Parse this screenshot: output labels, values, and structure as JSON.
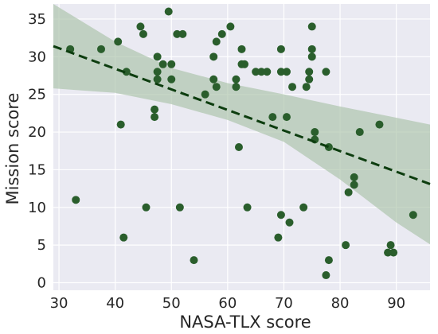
{
  "chart_data": {
    "type": "scatter",
    "xlabel": "NASA-TLX score",
    "ylabel": "Mission score",
    "xlim": [
      29,
      96
    ],
    "ylim": [
      -1,
      37
    ],
    "x_ticks": [
      30,
      40,
      50,
      60,
      70,
      80,
      90
    ],
    "y_ticks": [
      0,
      5,
      10,
      15,
      20,
      25,
      30,
      35
    ],
    "x_tick_labels": [
      "30",
      "40",
      "50",
      "60",
      "70",
      "80",
      "90"
    ],
    "y_tick_labels": [
      "0",
      "5",
      "10",
      "15",
      "20",
      "25",
      "30",
      "35"
    ],
    "grid": true,
    "points": [
      {
        "x": 32,
        "y": 31
      },
      {
        "x": 33,
        "y": 11
      },
      {
        "x": 37.5,
        "y": 31
      },
      {
        "x": 40.5,
        "y": 32
      },
      {
        "x": 41,
        "y": 21
      },
      {
        "x": 41.5,
        "y": 6
      },
      {
        "x": 42,
        "y": 28
      },
      {
        "x": 44.5,
        "y": 34
      },
      {
        "x": 45,
        "y": 33
      },
      {
        "x": 45.5,
        "y": 10
      },
      {
        "x": 47,
        "y": 23
      },
      {
        "x": 47,
        "y": 22
      },
      {
        "x": 47.5,
        "y": 30
      },
      {
        "x": 47.5,
        "y": 28
      },
      {
        "x": 47.5,
        "y": 27
      },
      {
        "x": 48.5,
        "y": 29
      },
      {
        "x": 49.5,
        "y": 36
      },
      {
        "x": 50,
        "y": 29
      },
      {
        "x": 50,
        "y": 27
      },
      {
        "x": 51,
        "y": 33
      },
      {
        "x": 51.5,
        "y": 10
      },
      {
        "x": 52,
        "y": 33
      },
      {
        "x": 54,
        "y": 3
      },
      {
        "x": 56,
        "y": 25
      },
      {
        "x": 57.5,
        "y": 27
      },
      {
        "x": 57.5,
        "y": 30
      },
      {
        "x": 58,
        "y": 26
      },
      {
        "x": 58,
        "y": 32
      },
      {
        "x": 59,
        "y": 33
      },
      {
        "x": 60.5,
        "y": 34
      },
      {
        "x": 61.5,
        "y": 26
      },
      {
        "x": 61.5,
        "y": 27
      },
      {
        "x": 62,
        "y": 18
      },
      {
        "x": 62.5,
        "y": 29
      },
      {
        "x": 62.5,
        "y": 31
      },
      {
        "x": 63,
        "y": 29
      },
      {
        "x": 63.5,
        "y": 10
      },
      {
        "x": 65,
        "y": 28
      },
      {
        "x": 66,
        "y": 28
      },
      {
        "x": 67,
        "y": 28
      },
      {
        "x": 68,
        "y": 22
      },
      {
        "x": 69,
        "y": 6
      },
      {
        "x": 69.5,
        "y": 28
      },
      {
        "x": 69.5,
        "y": 31
      },
      {
        "x": 69.5,
        "y": 9
      },
      {
        "x": 70.5,
        "y": 22
      },
      {
        "x": 70.5,
        "y": 28
      },
      {
        "x": 71,
        "y": 8
      },
      {
        "x": 71.5,
        "y": 26
      },
      {
        "x": 73.5,
        "y": 10
      },
      {
        "x": 74,
        "y": 26
      },
      {
        "x": 74.5,
        "y": 27
      },
      {
        "x": 74.5,
        "y": 28
      },
      {
        "x": 75,
        "y": 34
      },
      {
        "x": 75,
        "y": 31
      },
      {
        "x": 75,
        "y": 30
      },
      {
        "x": 75.5,
        "y": 20
      },
      {
        "x": 75.5,
        "y": 19
      },
      {
        "x": 77.5,
        "y": 1
      },
      {
        "x": 77.5,
        "y": 28
      },
      {
        "x": 78,
        "y": 3
      },
      {
        "x": 78,
        "y": 18
      },
      {
        "x": 81,
        "y": 5
      },
      {
        "x": 81.5,
        "y": 12
      },
      {
        "x": 82.5,
        "y": 13
      },
      {
        "x": 82.5,
        "y": 14
      },
      {
        "x": 83.5,
        "y": 20
      },
      {
        "x": 87,
        "y": 21
      },
      {
        "x": 88.5,
        "y": 4
      },
      {
        "x": 89,
        "y": 5
      },
      {
        "x": 89.5,
        "y": 4
      },
      {
        "x": 93,
        "y": 9
      }
    ],
    "regression": {
      "x": [
        29,
        96
      ],
      "y": [
        31.4,
        13.1
      ]
    },
    "confidence_band": {
      "x": [
        29,
        40,
        50,
        60,
        70,
        80,
        90,
        96
      ],
      "upper": [
        37.0,
        32.0,
        28.5,
        26.5,
        25.0,
        23.4,
        21.9,
        21.0
      ],
      "lower": [
        25.8,
        25.2,
        23.7,
        21.6,
        18.7,
        13.7,
        8.0,
        5.1
      ]
    },
    "colors": {
      "point": "#2a5e2c",
      "line": "#0d3d0f",
      "band": "#a9c2a7",
      "plot_background": "#eaeaf2",
      "grid": "#ffffff"
    }
  }
}
